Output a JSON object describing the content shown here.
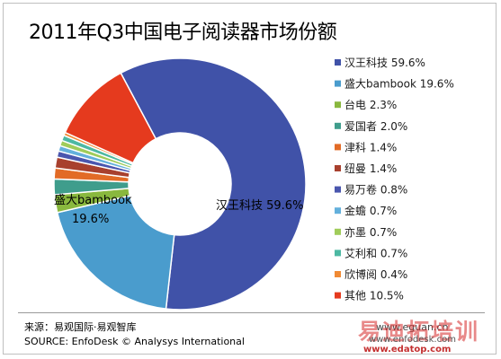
{
  "chart_data": {
    "type": "pie",
    "style": "donut",
    "title": "2011年Q3中国电子阅读器市场份额",
    "legend_position": "right",
    "slices": [
      {
        "name": "汉王科技",
        "value": 59.6,
        "label": "汉王科技 59.6%",
        "color": "#4052a8"
      },
      {
        "name": "盛大bambook",
        "value": 19.6,
        "label": "盛大bambook 19.6%",
        "color": "#4a9ccd"
      },
      {
        "name": "台电",
        "value": 2.3,
        "label": "台电 2.3%",
        "color": "#89b83e"
      },
      {
        "name": "爱国者",
        "value": 2.0,
        "label": "爱国者 2.0%",
        "color": "#3f9d8c"
      },
      {
        "name": "津科",
        "value": 1.4,
        "label": "津科 1.4%",
        "color": "#e26b26"
      },
      {
        "name": "纽曼",
        "value": 1.4,
        "label": "纽曼 1.4%",
        "color": "#a8402e"
      },
      {
        "name": "易万卷",
        "value": 0.8,
        "label": "易万卷 0.8%",
        "color": "#4a56ae"
      },
      {
        "name": "金蟾",
        "value": 0.7,
        "label": "金蟾 0.7%",
        "color": "#63b0dc"
      },
      {
        "name": "亦墨",
        "value": 0.7,
        "label": "亦墨 0.7%",
        "color": "#a0cc5a"
      },
      {
        "name": "艾利和",
        "value": 0.7,
        "label": "艾利和 0.7%",
        "color": "#4cb8a2"
      },
      {
        "name": "欣博阅",
        "value": 0.4,
        "label": "欣博阅 0.4%",
        "color": "#f08a34"
      },
      {
        "name": "其他",
        "value": 10.5,
        "label": "其他 10.5%",
        "color": "#e53a1e"
      }
    ],
    "data_labels": [
      {
        "slice": "汉王科技",
        "line1": "汉王科技  59.6%"
      },
      {
        "slice": "盛大bambook",
        "line1": "盛大bambook",
        "line2": "19.6%"
      }
    ]
  },
  "source": {
    "cn": "来源：易观国际·易观智库",
    "en": "SOURCE: EnfoDesk © Analysys International",
    "site": "www.eguan.cn"
  },
  "watermark": {
    "cn": "易迪拓培训",
    "url1": "www.enfodesk.com",
    "url2": "www.edatop.com"
  }
}
